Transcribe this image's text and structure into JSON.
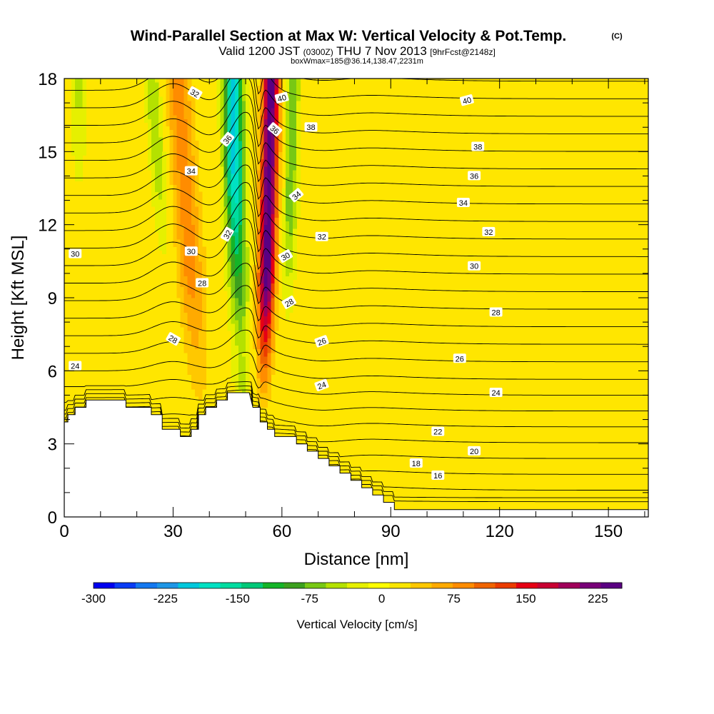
{
  "chart_data": {
    "type": "heatmap",
    "title": "Wind-Parallel Section at Max W: Vertical Velocity & Pot.Temp.",
    "title_mark": "(C)",
    "subtitle": {
      "valid": "Valid 1200 JST",
      "utc": "(0300Z)",
      "date": "THU 7 Nov 2013",
      "fcst": "[9hrFcst@2148z]"
    },
    "subtitle2": "boxWmax=185@36.14,138.47,2231m",
    "xlabel": "Distance [nm]",
    "ylabel": "Height [Kft MSL]",
    "xlim": [
      0,
      161
    ],
    "ylim": [
      0,
      18
    ],
    "x_ticks": [
      {
        "v": 0,
        "label": "0"
      },
      {
        "v": 30,
        "label": "30"
      },
      {
        "v": 60,
        "label": "60"
      },
      {
        "v": 90,
        "label": "90"
      },
      {
        "v": 120,
        "label": "120"
      },
      {
        "v": 150,
        "label": "150"
      }
    ],
    "y_ticks": [
      {
        "v": 0,
        "label": "0"
      },
      {
        "v": 3,
        "label": "3"
      },
      {
        "v": 6,
        "label": "6"
      },
      {
        "v": 9,
        "label": "9"
      },
      {
        "v": 12,
        "label": "12"
      },
      {
        "v": 15,
        "label": "15"
      },
      {
        "v": 18,
        "label": "18"
      }
    ],
    "colorbar": {
      "label": "Vertical Velocity [cm/s]",
      "ticks": [
        {
          "v": -300,
          "label": "-300"
        },
        {
          "v": -225,
          "label": "-225"
        },
        {
          "v": -150,
          "label": "-150"
        },
        {
          "v": -75,
          "label": "-75"
        },
        {
          "v": 0,
          "label": "0"
        },
        {
          "v": 75,
          "label": "75"
        },
        {
          "v": 150,
          "label": "150"
        },
        {
          "v": 225,
          "label": "225"
        }
      ],
      "min": -300,
      "max": 250,
      "colors": [
        "#0000f0",
        "#0a3cf5",
        "#1478f0",
        "#1e96e6",
        "#00c8dc",
        "#00e1c3",
        "#00dca0",
        "#00c878",
        "#14b428",
        "#3ca01e",
        "#78c814",
        "#b4e100",
        "#e6f000",
        "#ffff00",
        "#fae600",
        "#ffc800",
        "#ffaa00",
        "#ff8c00",
        "#f06400",
        "#eb3c00",
        "#e60014",
        "#c80032",
        "#a0005a",
        "#780078",
        "#5a0082"
      ]
    },
    "terrain_profile": [
      [
        0,
        3.9
      ],
      [
        1,
        3.9
      ],
      [
        1,
        4.2
      ],
      [
        3,
        4.2
      ],
      [
        3,
        4.5
      ],
      [
        6,
        4.5
      ],
      [
        6,
        4.8
      ],
      [
        13,
        4.8
      ],
      [
        13,
        4.8
      ],
      [
        17,
        4.8
      ],
      [
        17,
        4.5
      ],
      [
        24,
        4.5
      ],
      [
        24,
        4.2
      ],
      [
        27,
        4.2
      ],
      [
        27,
        3.6
      ],
      [
        29,
        3.6
      ],
      [
        29,
        3.6
      ],
      [
        32,
        3.6
      ],
      [
        32,
        3.3
      ],
      [
        35,
        3.3
      ],
      [
        35,
        3.6
      ],
      [
        37,
        3.6
      ],
      [
        37,
        4.2
      ],
      [
        39,
        4.2
      ],
      [
        39,
        4.5
      ],
      [
        42,
        4.5
      ],
      [
        42,
        4.8
      ],
      [
        45,
        4.8
      ],
      [
        45,
        5.1
      ],
      [
        51,
        5.1
      ],
      [
        51,
        5.1
      ],
      [
        52,
        4.5
      ],
      [
        54,
        4.5
      ],
      [
        54,
        3.9
      ],
      [
        56,
        3.9
      ],
      [
        56,
        3.6
      ],
      [
        58,
        3.6
      ],
      [
        58,
        3.3
      ],
      [
        64,
        3.3
      ],
      [
        64,
        3.0
      ],
      [
        67,
        3.0
      ],
      [
        67,
        2.7
      ],
      [
        70,
        2.7
      ],
      [
        70,
        2.4
      ],
      [
        73,
        2.4
      ],
      [
        73,
        2.1
      ],
      [
        76,
        2.1
      ],
      [
        76,
        1.8
      ],
      [
        79,
        1.8
      ],
      [
        79,
        1.5
      ],
      [
        82,
        1.5
      ],
      [
        82,
        1.2
      ],
      [
        85,
        1.2
      ],
      [
        85,
        0.9
      ],
      [
        88,
        0.9
      ],
      [
        88,
        0.6
      ],
      [
        91,
        0.6
      ],
      [
        91,
        0.3
      ],
      [
        161,
        0.3
      ]
    ],
    "theta_levels": [
      15,
      16,
      17,
      18,
      19,
      20,
      21,
      22,
      23,
      24,
      25,
      26,
      27,
      28,
      29,
      30,
      31,
      32,
      33,
      34,
      35,
      36,
      37,
      38,
      39,
      40,
      41
    ],
    "theta_labels": [
      {
        "x": 36,
        "y": 17.4,
        "label": "32",
        "rot": -30
      },
      {
        "x": 60,
        "y": 17.2,
        "label": "40",
        "rot": 15
      },
      {
        "x": 111,
        "y": 17.1,
        "label": "40",
        "rot": 15
      },
      {
        "x": 68,
        "y": 16.0,
        "label": "38",
        "rot": 0
      },
      {
        "x": 114,
        "y": 15.2,
        "label": "38",
        "rot": 0
      },
      {
        "x": 45,
        "y": 15.5,
        "label": "36",
        "rot": 50
      },
      {
        "x": 58,
        "y": 15.9,
        "label": "36",
        "rot": -40
      },
      {
        "x": 113,
        "y": 14.0,
        "label": "36",
        "rot": 0
      },
      {
        "x": 35,
        "y": 14.2,
        "label": "34",
        "rot": 0
      },
      {
        "x": 64,
        "y": 13.2,
        "label": "34",
        "rot": 40
      },
      {
        "x": 110,
        "y": 12.9,
        "label": "34",
        "rot": 0
      },
      {
        "x": 45,
        "y": 11.6,
        "label": "32",
        "rot": 60
      },
      {
        "x": 71,
        "y": 11.5,
        "label": "32",
        "rot": 0
      },
      {
        "x": 117,
        "y": 11.7,
        "label": "32",
        "rot": 0
      },
      {
        "x": 3,
        "y": 10.8,
        "label": "30",
        "rot": 0
      },
      {
        "x": 35,
        "y": 10.9,
        "label": "30",
        "rot": 0
      },
      {
        "x": 61,
        "y": 10.7,
        "label": "30",
        "rot": 30
      },
      {
        "x": 113,
        "y": 10.3,
        "label": "30",
        "rot": 0
      },
      {
        "x": 38,
        "y": 9.6,
        "label": "28",
        "rot": 0
      },
      {
        "x": 62,
        "y": 8.8,
        "label": "28",
        "rot": 30
      },
      {
        "x": 119,
        "y": 8.4,
        "label": "28",
        "rot": 0
      },
      {
        "x": 30,
        "y": 7.3,
        "label": "28",
        "rot": -30
      },
      {
        "x": 71,
        "y": 7.2,
        "label": "26",
        "rot": 20
      },
      {
        "x": 109,
        "y": 6.5,
        "label": "26",
        "rot": 0
      },
      {
        "x": 3,
        "y": 6.2,
        "label": "24",
        "rot": 0
      },
      {
        "x": 71,
        "y": 5.4,
        "label": "24",
        "rot": 20
      },
      {
        "x": 119,
        "y": 5.1,
        "label": "24",
        "rot": 0
      },
      {
        "x": 103,
        "y": 3.5,
        "label": "22",
        "rot": 0
      },
      {
        "x": 113,
        "y": 2.7,
        "label": "20",
        "rot": 0
      },
      {
        "x": 97,
        "y": 2.2,
        "label": "18",
        "rot": 0
      },
      {
        "x": 103,
        "y": 1.7,
        "label": "16",
        "rot": 0
      }
    ]
  }
}
